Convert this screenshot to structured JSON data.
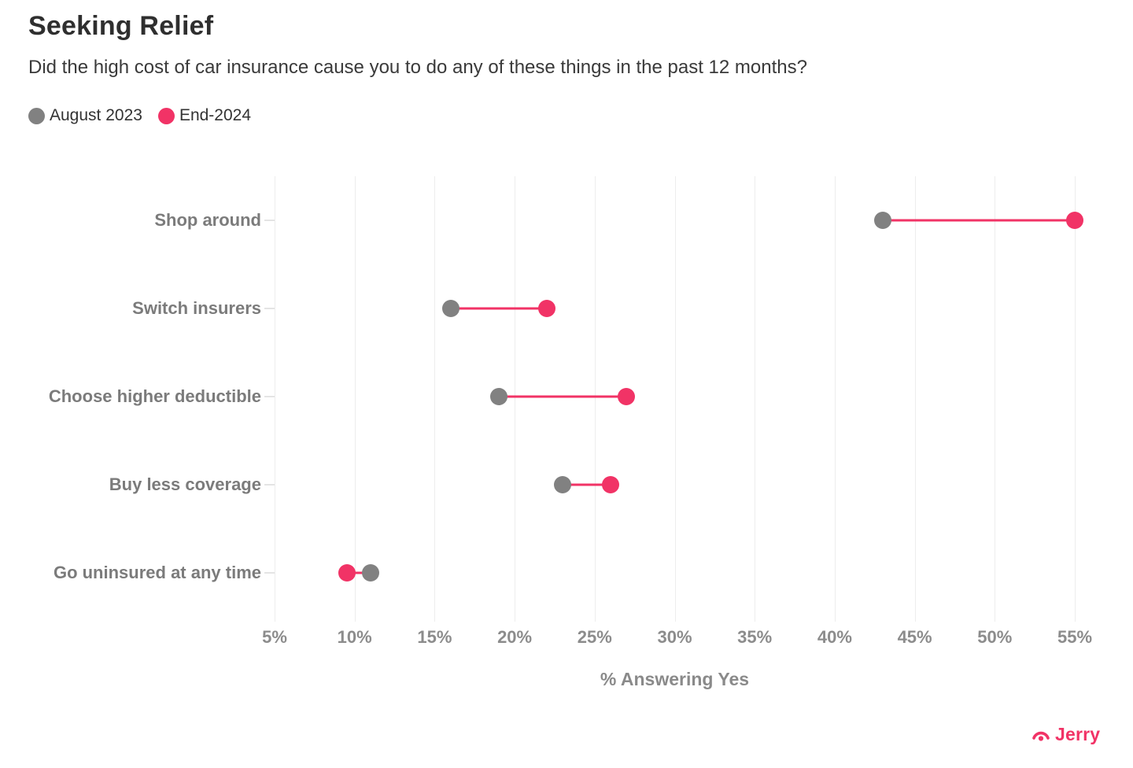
{
  "branding": {
    "logo_text": "Jerry",
    "brand_color": "#F13366"
  },
  "chart_data": {
    "type": "scatter",
    "variant": "dumbbell",
    "title": "Seeking Relief",
    "subtitle": "Did the high cost of car insurance cause you to do any of these things in the past 12 months?",
    "categories": [
      "Shop around",
      "Switch insurers",
      "Choose higher deductible",
      "Buy less coverage",
      "Go uninsured at any time"
    ],
    "series": [
      {
        "name": "August 2023",
        "color": "#818181",
        "values": [
          43,
          16,
          19,
          23,
          11
        ]
      },
      {
        "name": "End-2024",
        "color": "#F13366",
        "values": [
          55,
          22,
          27,
          26,
          9.5
        ]
      }
    ],
    "connector_color": "#F13366",
    "xlabel": "% Answering Yes",
    "x_ticks": [
      "5%",
      "10%",
      "15%",
      "20%",
      "25%",
      "30%",
      "35%",
      "40%",
      "45%",
      "50%",
      "55%"
    ],
    "xlim": [
      5,
      55
    ],
    "grid": "vertical",
    "gridline_color": "#ededed",
    "legend_position": "top-left"
  }
}
